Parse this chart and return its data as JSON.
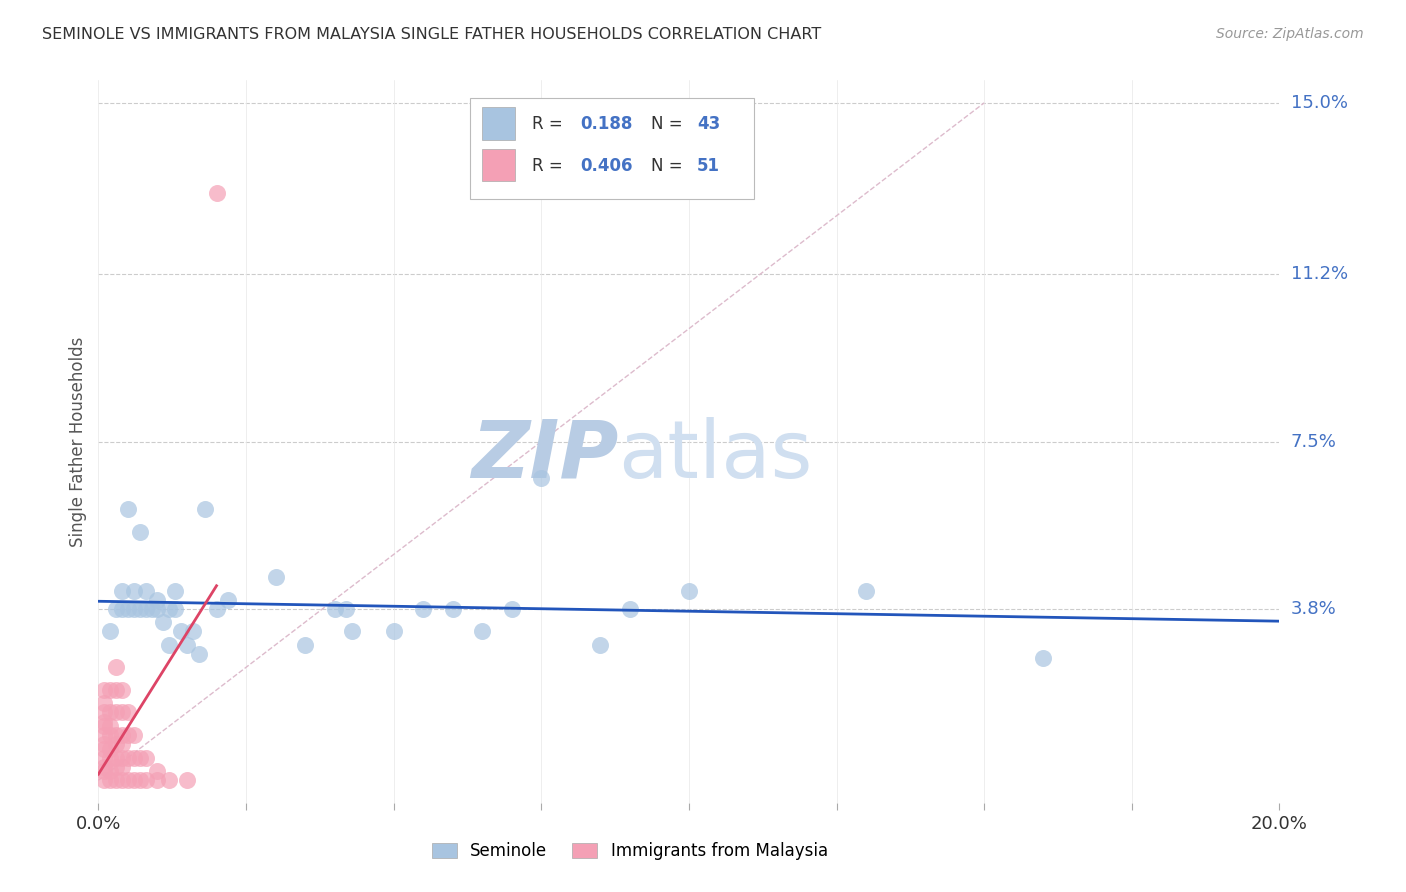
{
  "title": "SEMINOLE VS IMMIGRANTS FROM MALAYSIA SINGLE FATHER HOUSEHOLDS CORRELATION CHART",
  "source": "Source: ZipAtlas.com",
  "ylabel": "Single Father Households",
  "xlim": [
    0,
    0.2
  ],
  "ylim": [
    -0.005,
    0.155
  ],
  "yticks": [
    0.038,
    0.075,
    0.112,
    0.15
  ],
  "ytick_labels": [
    "3.8%",
    "7.5%",
    "11.2%",
    "15.0%"
  ],
  "xticks": [
    0.0,
    0.025,
    0.05,
    0.075,
    0.1,
    0.125,
    0.15,
    0.175,
    0.2
  ],
  "blue_R": 0.188,
  "blue_N": 43,
  "pink_R": 0.406,
  "pink_N": 51,
  "blue_color": "#a8c4e0",
  "pink_color": "#f4a0b5",
  "blue_line_color": "#2255bb",
  "pink_line_color": "#dd4466",
  "blue_scatter": [
    [
      0.002,
      0.033
    ],
    [
      0.003,
      0.038
    ],
    [
      0.004,
      0.038
    ],
    [
      0.004,
      0.042
    ],
    [
      0.005,
      0.038
    ],
    [
      0.005,
      0.06
    ],
    [
      0.006,
      0.038
    ],
    [
      0.006,
      0.042
    ],
    [
      0.007,
      0.038
    ],
    [
      0.007,
      0.055
    ],
    [
      0.008,
      0.038
    ],
    [
      0.008,
      0.042
    ],
    [
      0.009,
      0.038
    ],
    [
      0.01,
      0.04
    ],
    [
      0.01,
      0.038
    ],
    [
      0.011,
      0.035
    ],
    [
      0.012,
      0.038
    ],
    [
      0.012,
      0.03
    ],
    [
      0.013,
      0.042
    ],
    [
      0.013,
      0.038
    ],
    [
      0.014,
      0.033
    ],
    [
      0.015,
      0.03
    ],
    [
      0.016,
      0.033
    ],
    [
      0.017,
      0.028
    ],
    [
      0.018,
      0.06
    ],
    [
      0.02,
      0.038
    ],
    [
      0.022,
      0.04
    ],
    [
      0.03,
      0.045
    ],
    [
      0.035,
      0.03
    ],
    [
      0.04,
      0.038
    ],
    [
      0.042,
      0.038
    ],
    [
      0.043,
      0.033
    ],
    [
      0.05,
      0.033
    ],
    [
      0.055,
      0.038
    ],
    [
      0.06,
      0.038
    ],
    [
      0.065,
      0.033
    ],
    [
      0.07,
      0.038
    ],
    [
      0.075,
      0.067
    ],
    [
      0.085,
      0.03
    ],
    [
      0.09,
      0.038
    ],
    [
      0.1,
      0.042
    ],
    [
      0.13,
      0.042
    ],
    [
      0.16,
      0.027
    ]
  ],
  "pink_scatter": [
    [
      0.001,
      0.0
    ],
    [
      0.001,
      0.002
    ],
    [
      0.001,
      0.003
    ],
    [
      0.001,
      0.005
    ],
    [
      0.001,
      0.007
    ],
    [
      0.001,
      0.008
    ],
    [
      0.001,
      0.01
    ],
    [
      0.001,
      0.012
    ],
    [
      0.001,
      0.013
    ],
    [
      0.001,
      0.015
    ],
    [
      0.001,
      0.017
    ],
    [
      0.001,
      0.02
    ],
    [
      0.002,
      0.0
    ],
    [
      0.002,
      0.002
    ],
    [
      0.002,
      0.005
    ],
    [
      0.002,
      0.007
    ],
    [
      0.002,
      0.01
    ],
    [
      0.002,
      0.012
    ],
    [
      0.002,
      0.015
    ],
    [
      0.002,
      0.02
    ],
    [
      0.003,
      0.0
    ],
    [
      0.003,
      0.003
    ],
    [
      0.003,
      0.005
    ],
    [
      0.003,
      0.008
    ],
    [
      0.003,
      0.01
    ],
    [
      0.003,
      0.015
    ],
    [
      0.003,
      0.02
    ],
    [
      0.003,
      0.025
    ],
    [
      0.004,
      0.0
    ],
    [
      0.004,
      0.003
    ],
    [
      0.004,
      0.005
    ],
    [
      0.004,
      0.008
    ],
    [
      0.004,
      0.01
    ],
    [
      0.004,
      0.015
    ],
    [
      0.004,
      0.02
    ],
    [
      0.005,
      0.0
    ],
    [
      0.005,
      0.005
    ],
    [
      0.005,
      0.01
    ],
    [
      0.005,
      0.015
    ],
    [
      0.006,
      0.0
    ],
    [
      0.006,
      0.005
    ],
    [
      0.006,
      0.01
    ],
    [
      0.007,
      0.0
    ],
    [
      0.007,
      0.005
    ],
    [
      0.008,
      0.0
    ],
    [
      0.008,
      0.005
    ],
    [
      0.01,
      0.0
    ],
    [
      0.01,
      0.002
    ],
    [
      0.012,
      0.0
    ],
    [
      0.015,
      0.0
    ],
    [
      0.02,
      0.13
    ]
  ],
  "watermark_zip": "ZIP",
  "watermark_atlas": "atlas",
  "watermark_color": "#d0dff0"
}
